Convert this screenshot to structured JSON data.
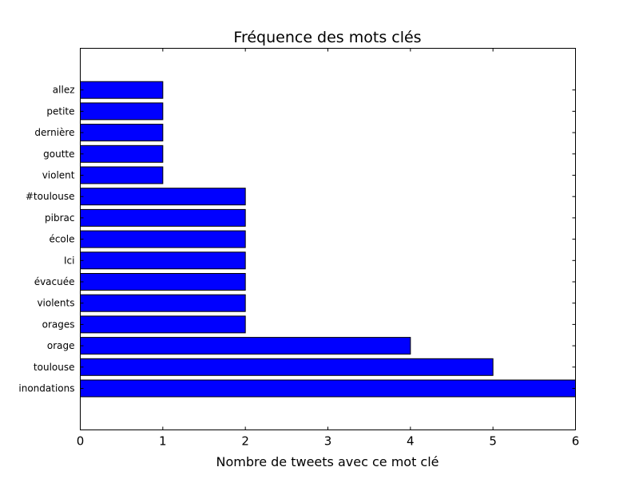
{
  "chart_data": {
    "type": "bar",
    "orientation": "horizontal",
    "title": "Fréquence des mots clés",
    "xlabel": "Nombre de tweets avec ce mot clé",
    "ylabel": "",
    "xlim": [
      0,
      6
    ],
    "xticks": [
      "0",
      "1",
      "2",
      "3",
      "4",
      "5",
      "6"
    ],
    "grid": false,
    "bar_color": "#0000ff",
    "categories": [
      "inondations",
      "toulouse",
      "orage",
      "orages",
      "violents",
      "évacuée",
      "Ici",
      "école",
      "pibrac",
      "#toulouse",
      "violent",
      "goutte",
      "dernière",
      "petite",
      "allez"
    ],
    "values": [
      6,
      5,
      4,
      2,
      2,
      2,
      2,
      2,
      2,
      2,
      1,
      1,
      1,
      1,
      1
    ]
  }
}
